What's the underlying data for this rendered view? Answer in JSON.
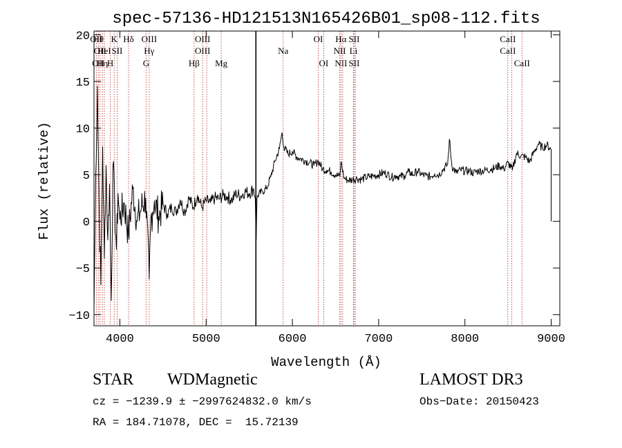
{
  "chart_data": {
    "type": "line",
    "title": "spec-57136-HD121513N165426B01_sp08-112.fits",
    "xlabel": "Wavelength (Å)",
    "ylabel": "Flux (relative)",
    "xlim": [
      3700,
      9100
    ],
    "ylim": [
      -11.2,
      20.4
    ],
    "xticks": [
      4000,
      5000,
      6000,
      7000,
      8000,
      9000
    ],
    "yticks": [
      -10,
      -5,
      0,
      5,
      10,
      15,
      20
    ],
    "grid": false,
    "line_color": "#000000",
    "marker_color": "#b22222",
    "series": [
      {
        "x": [
          3700,
          3720,
          3740,
          3760,
          3780,
          3800,
          3820,
          3840,
          3860,
          3880,
          3900,
          3920,
          3940,
          3960,
          3980,
          4000,
          4050,
          4100,
          4150,
          4200,
          4250,
          4300,
          4340,
          4360,
          4380,
          4400,
          4450,
          4500,
          4550,
          4600,
          4650,
          4700,
          4750,
          4800,
          4850,
          4900,
          4950,
          5000,
          5050,
          5100,
          5150,
          5200,
          5250,
          5300,
          5350,
          5400,
          5450,
          5500,
          5550,
          5570,
          5580,
          5590,
          5600,
          5650,
          5700,
          5750,
          5800,
          5850,
          5880,
          5900,
          5950,
          6000,
          6050,
          6100,
          6150,
          6200,
          6250,
          6300,
          6350,
          6400,
          6450,
          6500,
          6550,
          6563,
          6600,
          6650,
          6700,
          6750,
          6800,
          6850,
          6900,
          6950,
          7000,
          7050,
          7100,
          7150,
          7200,
          7250,
          7300,
          7350,
          7400,
          7450,
          7500,
          7550,
          7600,
          7650,
          7700,
          7750,
          7800,
          7820,
          7850,
          7900,
          7950,
          8000,
          8050,
          8100,
          8150,
          8200,
          8250,
          8300,
          8350,
          8400,
          8450,
          8500,
          8550,
          8600,
          8650,
          8700,
          8750,
          8800,
          8850,
          8900,
          8950,
          9000
        ],
        "y": [
          -9.5,
          5,
          14.5,
          1,
          -6.8,
          8,
          -4,
          6,
          -2,
          4,
          -8.5,
          6,
          2,
          -3,
          3,
          0.2,
          2,
          -1.5,
          3.5,
          0,
          1.5,
          2.5,
          -6.2,
          0.5,
          1,
          2.2,
          0.5,
          1.8,
          0.8,
          1.5,
          1,
          2.3,
          1,
          2.5,
          1.5,
          2.8,
          1.5,
          2.2,
          2,
          2.5,
          2.4,
          2.8,
          2.6,
          2.3,
          3,
          2.7,
          3.2,
          3,
          3.5,
          2.5,
          -2,
          2.5,
          2.8,
          3.2,
          3.5,
          4.8,
          6.5,
          7.8,
          9.5,
          8,
          7.2,
          7.5,
          6.9,
          6.7,
          6.5,
          6.3,
          6,
          6.5,
          5.6,
          5.5,
          5.3,
          5,
          4.8,
          6.4,
          4.6,
          4.4,
          4.5,
          4.6,
          4.5,
          4.7,
          4.8,
          4.9,
          5,
          5.2,
          5.1,
          4.7,
          4.9,
          4.8,
          4.9,
          5.3,
          5,
          5.4,
          5,
          4.9,
          4.8,
          5.1,
          5,
          5.6,
          6.1,
          8.8,
          5.9,
          5.2,
          5.5,
          5.4,
          5.4,
          5.2,
          5.4,
          5.4,
          5.5,
          5.6,
          5.7,
          6,
          5.6,
          6.3,
          5.5,
          7.3,
          7,
          6.9,
          6.4,
          7.4,
          8.3,
          7.9,
          8.2,
          7.7
        ]
      }
    ],
    "lines": [
      {
        "x": 3727,
        "top": "OII",
        "mid": "",
        "low": ""
      },
      {
        "x": 3750,
        "top": "Hθ",
        "mid": "",
        "low": "OII"
      },
      {
        "x": 3770,
        "top": "",
        "mid": "OII",
        "low": ""
      },
      {
        "x": 3797,
        "top": "",
        "mid": "",
        "low": "Hη"
      },
      {
        "x": 3820,
        "top": "",
        "mid": "HeI",
        "low": ""
      },
      {
        "x": 3889,
        "top": "",
        "mid": "",
        "low": "H"
      },
      {
        "x": 3934,
        "top": "K",
        "mid": "",
        "low": ""
      },
      {
        "x": 3968,
        "top": "",
        "mid": "SII",
        "low": ""
      },
      {
        "x": 4101,
        "top": "Hδ",
        "mid": "",
        "low": ""
      },
      {
        "x": 4304,
        "top": "",
        "mid": "",
        "low": "G"
      },
      {
        "x": 4340,
        "top": "OIII",
        "mid": "Hγ",
        "low": ""
      },
      {
        "x": 4861,
        "top": "",
        "mid": "",
        "low": "Hβ"
      },
      {
        "x": 4959,
        "top": "OIII",
        "mid": "OIII",
        "low": ""
      },
      {
        "x": 5007,
        "top": "",
        "mid": "",
        "low": ""
      },
      {
        "x": 5175,
        "top": "",
        "mid": "",
        "low": "Mg"
      },
      {
        "x": 5893,
        "top": "",
        "mid": "Na",
        "low": ""
      },
      {
        "x": 6300,
        "top": "OI",
        "mid": "",
        "low": ""
      },
      {
        "x": 6363,
        "top": "",
        "mid": "",
        "low": "OI"
      },
      {
        "x": 6548,
        "top": "",
        "mid": "NII",
        "low": ""
      },
      {
        "x": 6563,
        "top": "Hα",
        "mid": "",
        "low": "NII"
      },
      {
        "x": 6583,
        "top": "",
        "mid": "",
        "low": ""
      },
      {
        "x": 6708,
        "top": "",
        "mid": "Li",
        "low": ""
      },
      {
        "x": 6716,
        "top": "SII",
        "mid": "",
        "low": "SII"
      },
      {
        "x": 6731,
        "top": "",
        "mid": "",
        "low": ""
      },
      {
        "x": 8498,
        "top": "CaII",
        "mid": "CaII",
        "low": ""
      },
      {
        "x": 8542,
        "top": "",
        "mid": "",
        "low": ""
      },
      {
        "x": 8662,
        "top": "",
        "mid": "",
        "low": "CaII"
      }
    ],
    "vertical_marker": 5577
  },
  "info": {
    "class": "STAR",
    "subclass": "WDMagnetic",
    "survey": "LAMOST DR3",
    "cz": "cz = −1239.9 ± −2997624832.0 km/s",
    "obs_date": "Obs−Date: 20150423",
    "radec": "RA = 184.71078, DEC =  15.72139"
  }
}
